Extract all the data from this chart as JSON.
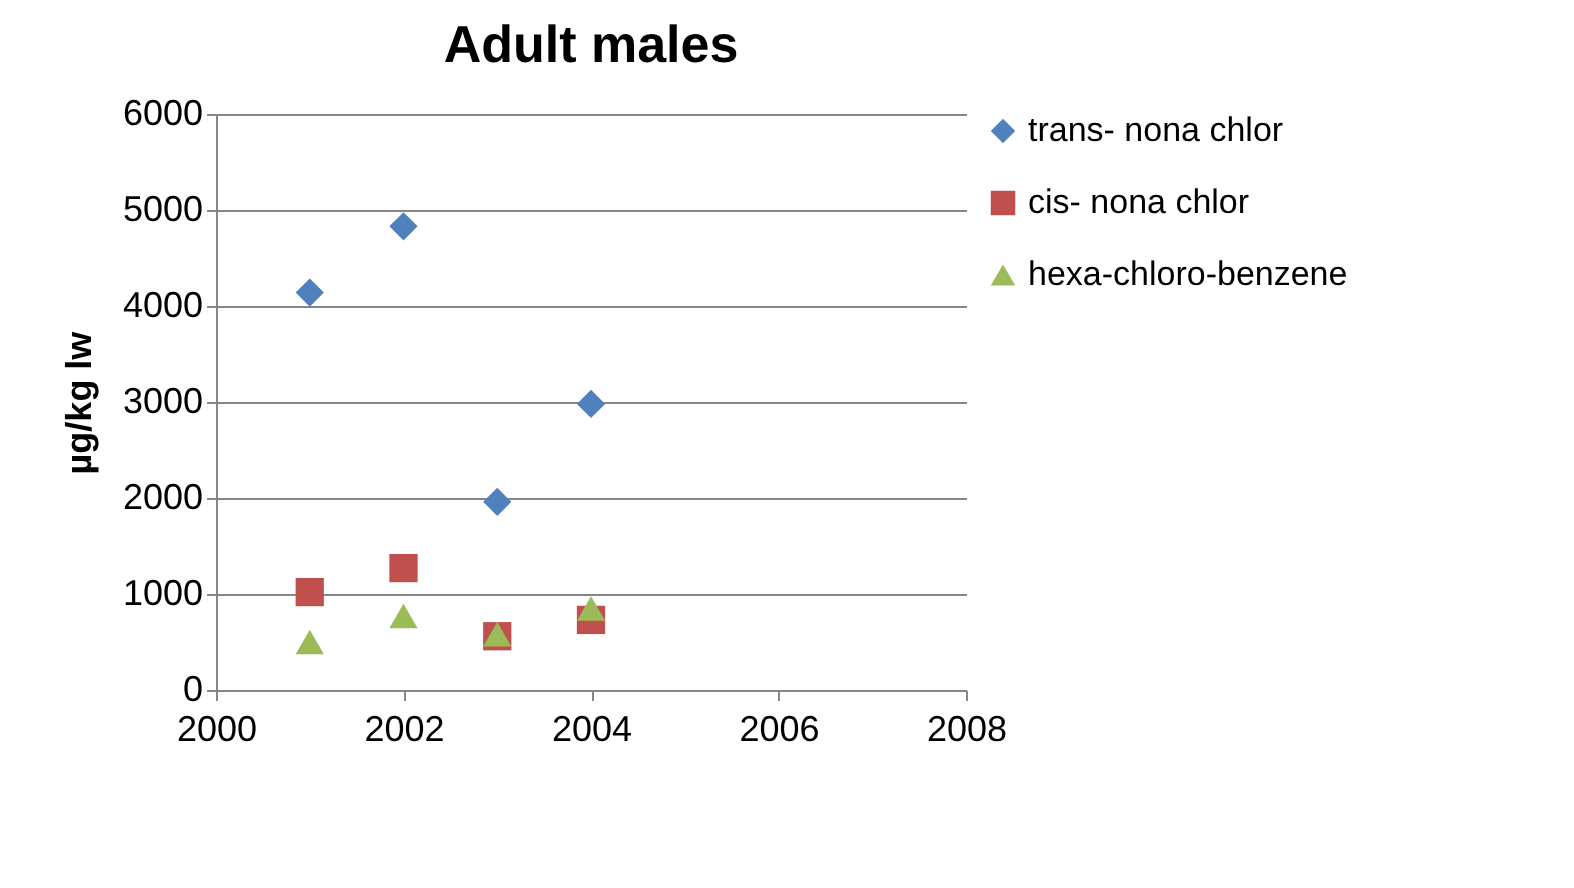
{
  "chart_data": {
    "type": "scatter",
    "title": "Adult males",
    "ylabel": "µg/kg lw",
    "x": [
      2001,
      2002,
      2003,
      2004
    ],
    "series": [
      {
        "name": "trans- nona chlor",
        "color": "#4f81bd",
        "marker": "diamond",
        "values": [
          4140,
          4830,
          1960,
          2980
        ]
      },
      {
        "name": "cis- nona chlor",
        "color": "#c0504d",
        "marker": "square",
        "values": [
          1020,
          1270,
          560,
          730
        ]
      },
      {
        "name": "hexa-chloro-benzene",
        "color": "#9bbb59",
        "marker": "triangle",
        "values": [
          500,
          770,
          580,
          850
        ]
      }
    ],
    "xlim": [
      2000,
      2008
    ],
    "xticks": [
      2000,
      2002,
      2004,
      2006,
      2008
    ],
    "ylim": [
      0,
      6000
    ],
    "yticks": [
      0,
      1000,
      2000,
      3000,
      4000,
      5000,
      6000
    ],
    "grid": "y",
    "legend": "right"
  }
}
